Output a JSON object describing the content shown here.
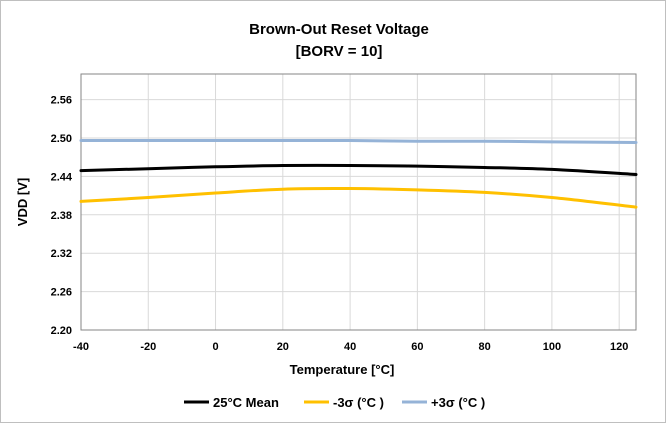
{
  "chart_data": {
    "type": "line",
    "title": [
      "Brown-Out Reset Voltage",
      "[BORV = 10]"
    ],
    "xlabel": "Temperature [°C]",
    "ylabel": "VDD [V]",
    "xlim": [
      -40,
      125
    ],
    "ylim": [
      2.2,
      2.6
    ],
    "x_ticks": [
      -40,
      -20,
      0,
      20,
      40,
      60,
      80,
      100,
      120
    ],
    "y_ticks": [
      2.2,
      2.26,
      2.32,
      2.38,
      2.44,
      2.5,
      2.56
    ],
    "grid": true,
    "legend_position": "bottom",
    "x": [
      -40,
      -20,
      0,
      20,
      40,
      60,
      80,
      100,
      125
    ],
    "series": [
      {
        "name": "25°C Mean",
        "color": "#000000",
        "values": [
          2.449,
          2.452,
          2.455,
          2.457,
          2.457,
          2.456,
          2.454,
          2.451,
          2.443
        ]
      },
      {
        "name": "-3σ (°C )",
        "color": "#ffc000",
        "values": [
          2.401,
          2.407,
          2.414,
          2.42,
          2.421,
          2.419,
          2.415,
          2.407,
          2.392
        ]
      },
      {
        "name": "+3σ (°C )",
        "color": "#95b3d7",
        "values": [
          2.496,
          2.496,
          2.496,
          2.496,
          2.496,
          2.495,
          2.495,
          2.494,
          2.493
        ]
      }
    ]
  }
}
